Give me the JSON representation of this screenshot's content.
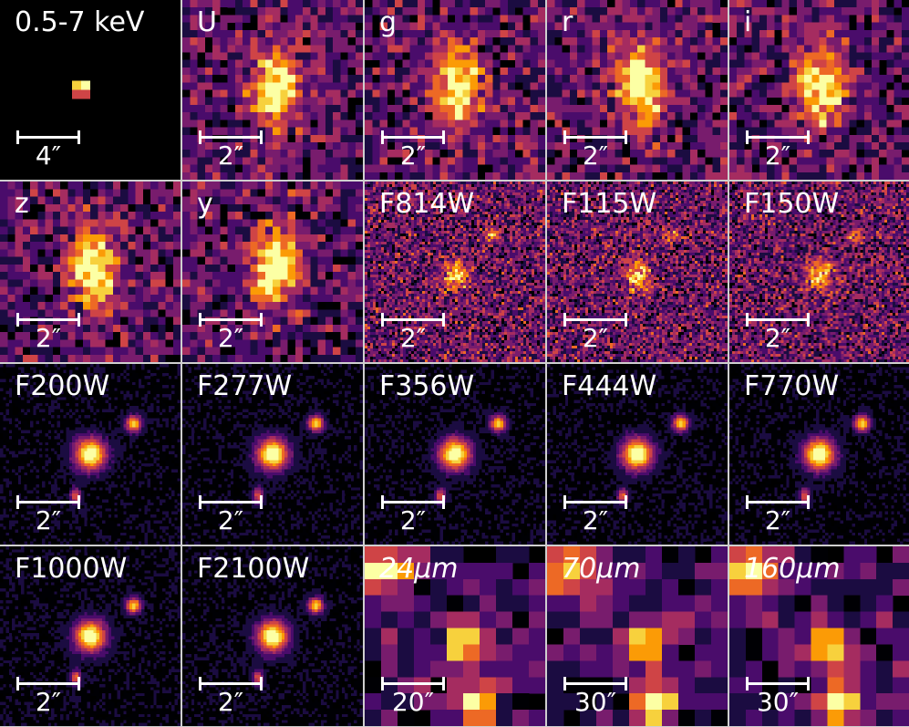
{
  "colormap": {
    "name": "inferno",
    "stops": [
      "#000004",
      "#1b0c41",
      "#4a0c6b",
      "#781c6d",
      "#a52c60",
      "#cf4446",
      "#ed6925",
      "#fb9b06",
      "#f7d13d",
      "#fcffa4"
    ]
  },
  "panels": [
    {
      "id": "xray",
      "label": "0.5-7 keV",
      "scale": "4″",
      "style": "xray"
    },
    {
      "id": "U",
      "label": "U",
      "scale": "2″",
      "style": "coarse"
    },
    {
      "id": "g",
      "label": "g",
      "scale": "2″",
      "style": "coarse"
    },
    {
      "id": "r",
      "label": "r",
      "scale": "2″",
      "style": "coarse"
    },
    {
      "id": "i",
      "label": "i",
      "scale": "2″",
      "style": "coarse"
    },
    {
      "id": "z",
      "label": "z",
      "scale": "2″",
      "style": "coarse"
    },
    {
      "id": "y",
      "label": "y",
      "scale": "2″",
      "style": "coarse"
    },
    {
      "id": "F814W",
      "label": "F814W",
      "scale": "2″",
      "style": "noisy"
    },
    {
      "id": "F115W",
      "label": "F115W",
      "scale": "2″",
      "style": "noisy"
    },
    {
      "id": "F150W",
      "label": "F150W",
      "scale": "2″",
      "style": "noisy"
    },
    {
      "id": "F200W",
      "label": "F200W",
      "scale": "2″",
      "style": "fine"
    },
    {
      "id": "F277W",
      "label": "F277W",
      "scale": "2″",
      "style": "fine"
    },
    {
      "id": "F356W",
      "label": "F356W",
      "scale": "2″",
      "style": "fine"
    },
    {
      "id": "F444W",
      "label": "F444W",
      "scale": "2″",
      "style": "fine"
    },
    {
      "id": "F770W",
      "label": "F770W",
      "scale": "2″",
      "style": "fine"
    },
    {
      "id": "F1000W",
      "label": "F1000W",
      "scale": "2″",
      "style": "fine"
    },
    {
      "id": "F2100W",
      "label": "F2100W",
      "scale": "2″",
      "style": "fine"
    },
    {
      "id": "24um",
      "label": "24μm",
      "italic": true,
      "scale": "20″",
      "style": "far"
    },
    {
      "id": "70um",
      "label": "70μm",
      "italic": true,
      "scale": "30″",
      "style": "far"
    },
    {
      "id": "160um",
      "label": "160μm",
      "italic": true,
      "scale": "30″",
      "style": "far"
    }
  ]
}
